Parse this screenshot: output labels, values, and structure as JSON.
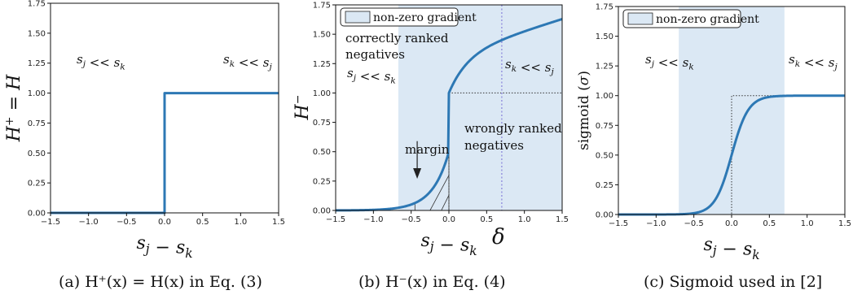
{
  "colors": {
    "curve": "#2d78b4",
    "shade": "#dbe8f4",
    "dotted": "#333333",
    "delta_line": "#9b9ae0",
    "axes": "#111111"
  },
  "chart_data": [
    {
      "type": "line",
      "id": "a",
      "xlabel": "s_j − s_k",
      "ylabel": "H⁺ = H",
      "xlim": [
        -1.5,
        1.5
      ],
      "ylim": [
        0,
        1.75
      ],
      "xticks": [
        "−1.5",
        "−1.0",
        "−0.5",
        "0.0",
        "0.5",
        "1.0",
        "1.5"
      ],
      "yticks": [
        "0.00",
        "0.25",
        "0.50",
        "0.75",
        "1.00",
        "1.25",
        "1.50",
        "1.75"
      ],
      "series": [
        {
          "function": "heaviside",
          "x": [
            -1.5,
            0,
            0,
            1.5
          ],
          "y": [
            0,
            0,
            1,
            1
          ]
        }
      ],
      "annotations": [
        "s_j << s_k",
        "s_k << s_j"
      ],
      "caption": "(a) H⁺(x) = H(x) in Eq. (3)"
    },
    {
      "type": "line",
      "id": "b",
      "xlabel": "s_j − s_k",
      "ylabel": "H⁻",
      "xlim": [
        -1.5,
        1.5
      ],
      "ylim": [
        0,
        1.75
      ],
      "xticks": [
        "−1.5",
        "−1.0",
        "−0.5",
        "0.0",
        "0.5",
        "1.0",
        "1.5"
      ],
      "yticks": [
        "0.00",
        "0.25",
        "0.50",
        "0.75",
        "1.00",
        "1.25",
        "1.50",
        "1.75"
      ],
      "series": [
        {
          "function": "h_minus",
          "x": [
            -1.5,
            -0.5,
            -0.25,
            0,
            0,
            0.5,
            0.7,
            1.0,
            1.5
          ],
          "y": [
            0.0,
            0.03,
            0.14,
            0.5,
            1.0,
            1.44,
            1.49,
            1.54,
            1.65
          ]
        }
      ],
      "reference": {
        "step_dotted": true,
        "delta_x": 0.7
      },
      "shaded_region": [
        -0.67,
        1.5
      ],
      "legend": "non-zero gradient",
      "legend_position": "top-left",
      "annotations": [
        "correctly ranked",
        "negatives",
        "s_j << s_k",
        "s_k << s_j",
        "wrongly ranked",
        "negatives",
        "margin",
        "δ"
      ],
      "caption": "(b) H⁻(x) in Eq. (4)"
    },
    {
      "type": "line",
      "id": "c",
      "xlabel": "s_j − s_k",
      "ylabel": "sigmoid (σ)",
      "xlim": [
        -1.5,
        1.5
      ],
      "ylim": [
        0,
        1.75
      ],
      "xticks": [
        "−1.5",
        "−1.0",
        "−0.5",
        "0.0",
        "0.5",
        "1.0",
        "1.5"
      ],
      "yticks": [
        "0.00",
        "0.25",
        "0.50",
        "0.75",
        "1.00",
        "1.25",
        "1.50",
        "1.75"
      ],
      "series": [
        {
          "function": "sigmoid",
          "x": [
            -1.5,
            -0.5,
            0,
            0.5,
            1.5
          ],
          "y": [
            0.0,
            0.05,
            0.5,
            0.95,
            1.0
          ]
        }
      ],
      "reference": {
        "step_dotted": true
      },
      "shaded_region": [
        -0.7,
        0.7
      ],
      "legend": "non-zero gradient",
      "legend_position": "top-left",
      "annotations": [
        "s_j << s_k",
        "s_k << s_j"
      ],
      "caption": "(c) Sigmoid used in [2]"
    }
  ]
}
